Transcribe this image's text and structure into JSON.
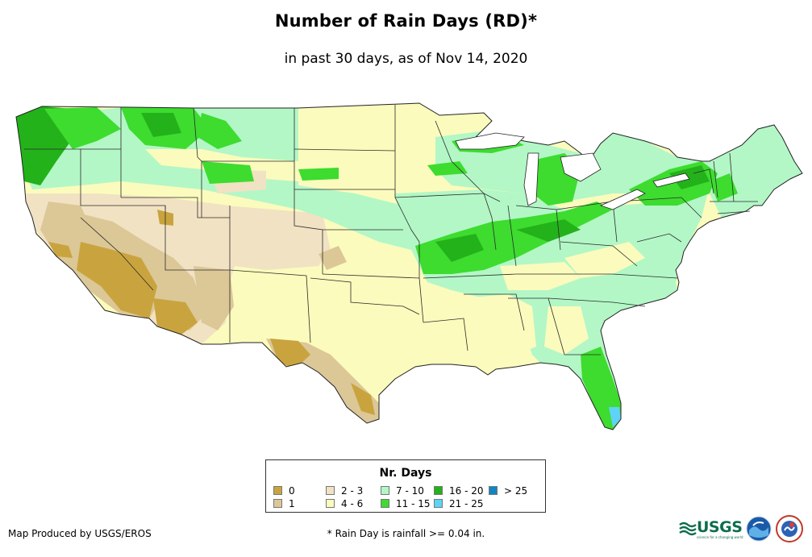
{
  "title": "Number of Rain Days (RD)*",
  "subtitle": "in past 30 days, as of Nov 14, 2020",
  "legend": {
    "title": "Nr. Days",
    "items": [
      {
        "label": "0",
        "color": "#c9a43e"
      },
      {
        "label": "1",
        "color": "#dcc797"
      },
      {
        "label": "2 - 3",
        "color": "#f1e2c3"
      },
      {
        "label": "4 - 6",
        "color": "#fbfbbd"
      },
      {
        "label": "7 - 10",
        "color": "#b3f7c6"
      },
      {
        "label": "11 - 15",
        "color": "#3ddc2f"
      },
      {
        "label": "16 - 20",
        "color": "#23b21a"
      },
      {
        "label": "21 - 25",
        "color": "#5fd3f5"
      },
      {
        "label": "> 25",
        "color": "#0f85c4"
      }
    ]
  },
  "credit": "Map Produced by USGS/EROS",
  "footnote": "* Rain Day is rainfall >= 0.04 in.",
  "logos": {
    "usgs": {
      "text": "USGS",
      "tagline": "science for a changing world",
      "icon": "usgs-logo"
    },
    "noaa": {
      "icon": "noaa-logo"
    },
    "nws": {
      "icon": "nws-logo"
    }
  }
}
